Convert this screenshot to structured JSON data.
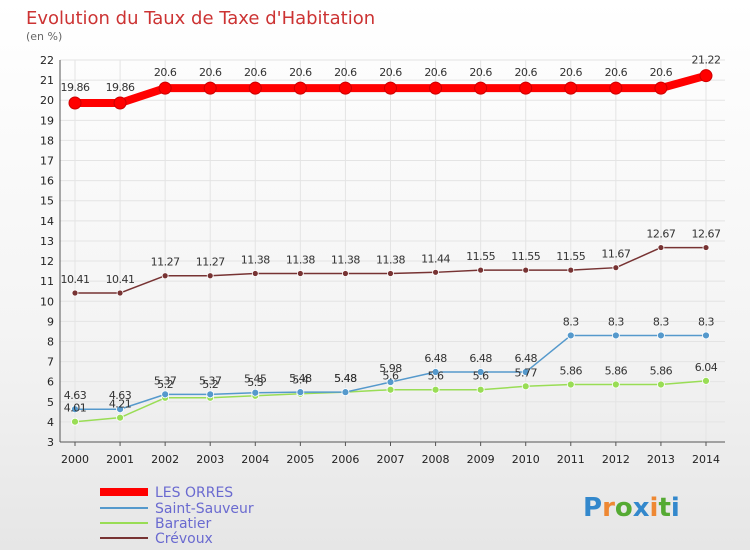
{
  "chart_data": {
    "type": "line",
    "title": "Evolution du Taux de Taxe d'Habitation",
    "unit_label": "(en %)",
    "xlabel": "",
    "ylabel": "(en %)",
    "x": [
      "2000",
      "2001",
      "2002",
      "2003",
      "2004",
      "2005",
      "2006",
      "2007",
      "2008",
      "2009",
      "2010",
      "2011",
      "2012",
      "2013",
      "2014"
    ],
    "ylim": [
      3,
      22
    ],
    "yticks": [
      3,
      4,
      5,
      6,
      7,
      8,
      9,
      10,
      11,
      12,
      13,
      14,
      15,
      16,
      17,
      18,
      19,
      20,
      21,
      22
    ],
    "grid": true,
    "legend_position": "bottom-left",
    "series": [
      {
        "name": "LES ORRES",
        "color": "#ff0000",
        "values": [
          19.86,
          19.86,
          20.6,
          20.6,
          20.6,
          20.6,
          20.6,
          20.6,
          20.6,
          20.6,
          20.6,
          20.6,
          20.6,
          20.6,
          21.22
        ],
        "labels": [
          "19.86",
          "19.86",
          "20.6",
          "20.6",
          "20.6",
          "20.6",
          "20.6",
          "20.6",
          "20.6",
          "20.6",
          "20.6",
          "20.6",
          "20.6",
          "20.6",
          "21.22"
        ]
      },
      {
        "name": "Saint-Sauveur",
        "color": "#5599cc",
        "values": [
          4.63,
          4.63,
          5.37,
          5.37,
          5.45,
          5.48,
          5.48,
          5.98,
          6.48,
          6.48,
          6.48,
          8.3,
          8.3,
          8.3,
          8.3
        ],
        "labels": [
          "4.63",
          "4.63",
          "5.37",
          "5.37",
          "5.45",
          "5.48",
          "5.48",
          "5.98",
          "6.48",
          "6.48",
          "6.48",
          "8.3",
          "8.3",
          "8.3",
          "8.3"
        ]
      },
      {
        "name": "Baratier",
        "color": "#99dd55",
        "values": [
          4.01,
          4.21,
          5.2,
          5.2,
          5.3,
          5.4,
          5.48,
          5.6,
          5.6,
          5.6,
          5.77,
          5.86,
          5.86,
          5.86,
          6.04
        ],
        "labels": [
          "4.01",
          "4.21",
          "5.2",
          "5.2",
          "5.3",
          "5.4",
          "5.48",
          "5.6",
          "5.6",
          "5.6",
          "5.77",
          "5.86",
          "5.86",
          "5.86",
          "6.04"
        ]
      },
      {
        "name": "Crévoux",
        "color": "#773333",
        "values": [
          10.41,
          10.41,
          11.27,
          11.27,
          11.38,
          11.38,
          11.38,
          11.38,
          11.44,
          11.55,
          11.55,
          11.55,
          11.67,
          12.67,
          12.67
        ],
        "labels": [
          "10.41",
          "10.41",
          "11.27",
          "11.27",
          "11.38",
          "11.38",
          "11.38",
          "11.38",
          "11.44",
          "11.55",
          "11.55",
          "11.55",
          "11.67",
          "12.67",
          "12.67"
        ]
      }
    ]
  },
  "watermark": "Proxiti"
}
